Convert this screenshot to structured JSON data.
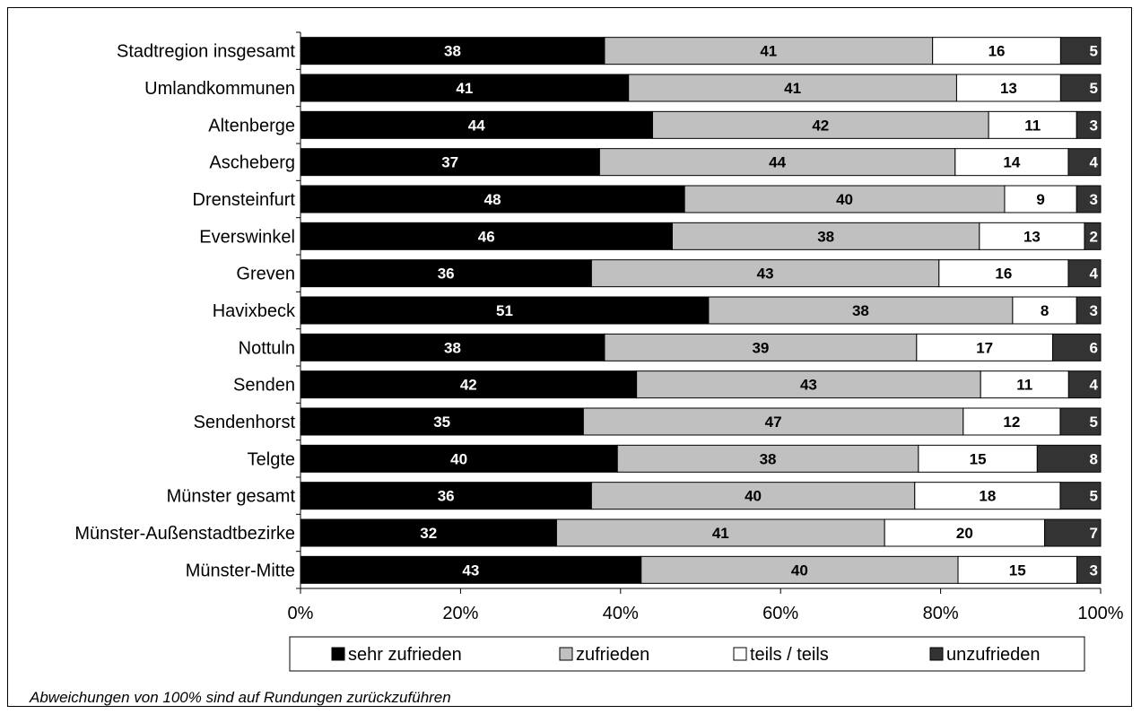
{
  "chart_data": {
    "type": "bar",
    "orientation": "horizontal",
    "stacked": true,
    "percent_stacked": true,
    "categories": [
      "Stadtregion insgesamt",
      "Umlandkommunen",
      "Altenberge",
      "Ascheberg",
      "Drensteinfurt",
      "Everswinkel",
      "Greven",
      "Havixbeck",
      "Nottuln",
      "Senden",
      "Sendenhorst",
      "Telgte",
      "Münster gesamt",
      "Münster-Außenstadtbezirke",
      "Münster-Mitte"
    ],
    "series": [
      {
        "name": "sehr zufrieden",
        "color": "#000000",
        "label_color": "#ffffff",
        "values": [
          38,
          41,
          44,
          37,
          48,
          46,
          36,
          51,
          38,
          42,
          35,
          40,
          36,
          32,
          43
        ]
      },
      {
        "name": "zufrieden",
        "color": "#c0c0c0",
        "label_color": "#000000",
        "values": [
          41,
          41,
          42,
          44,
          40,
          38,
          43,
          38,
          39,
          43,
          47,
          38,
          40,
          41,
          40
        ]
      },
      {
        "name": "teils / teils",
        "color": "#ffffff",
        "label_color": "#000000",
        "values": [
          16,
          13,
          11,
          14,
          9,
          13,
          16,
          8,
          17,
          11,
          12,
          15,
          18,
          20,
          15
        ]
      },
      {
        "name": "unzufrieden",
        "color": "#333333",
        "label_color": "#ffffff",
        "values": [
          5,
          5,
          3,
          4,
          3,
          2,
          4,
          3,
          6,
          4,
          5,
          8,
          5,
          7,
          3
        ]
      }
    ],
    "x_ticks": [
      "0%",
      "20%",
      "40%",
      "60%",
      "80%",
      "100%"
    ],
    "xlim": [
      0,
      100
    ],
    "grid": false,
    "legend": "bottom"
  },
  "footnote": "Abweichungen von 100% sind auf Rundungen zurückzuführen"
}
